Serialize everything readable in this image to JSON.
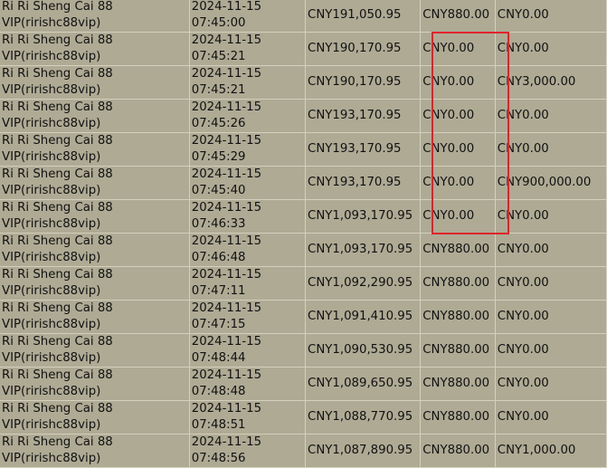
{
  "highlight_color": "#e0242b",
  "rows": [
    {
      "name": "Ri Ri Sheng Cai 88",
      "account": "VIP(ririshc88vip)",
      "date": "2024-11-15",
      "time": "07:45:00",
      "balance": "CNY191,050.95",
      "debit": "CNY880.00",
      "credit": "CNY0.00"
    },
    {
      "name": "Ri Ri Sheng Cai 88",
      "account": "VIP(ririshc88vip)",
      "date": "2024-11-15",
      "time": "07:45:21",
      "balance": "CNY190,170.95",
      "debit": "CNY0.00",
      "credit": "CNY0.00"
    },
    {
      "name": "Ri Ri Sheng Cai 88",
      "account": "VIP(ririshc88vip)",
      "date": "2024-11-15",
      "time": "07:45:21",
      "balance": "CNY190,170.95",
      "debit": "CNY0.00",
      "credit": "CNY3,000.00"
    },
    {
      "name": "Ri Ri Sheng Cai 88",
      "account": "VIP(ririshc88vip)",
      "date": "2024-11-15",
      "time": "07:45:26",
      "balance": "CNY193,170.95",
      "debit": "CNY0.00",
      "credit": "CNY0.00"
    },
    {
      "name": "Ri Ri Sheng Cai 88",
      "account": "VIP(ririshc88vip)",
      "date": "2024-11-15",
      "time": "07:45:29",
      "balance": "CNY193,170.95",
      "debit": "CNY0.00",
      "credit": "CNY0.00"
    },
    {
      "name": "Ri Ri Sheng Cai 88",
      "account": "VIP(ririshc88vip)",
      "date": "2024-11-15",
      "time": "07:45:40",
      "balance": "CNY193,170.95",
      "debit": "CNY0.00",
      "credit": "CNY900,000.00"
    },
    {
      "name": "Ri Ri Sheng Cai 88",
      "account": "VIP(ririshc88vip)",
      "date": "2024-11-15",
      "time": "07:46:33",
      "balance": "CNY1,093,170.95",
      "debit": "CNY0.00",
      "credit": "CNY0.00"
    },
    {
      "name": "Ri Ri Sheng Cai 88",
      "account": "VIP(ririshc88vip)",
      "date": "2024-11-15",
      "time": "07:46:48",
      "balance": "CNY1,093,170.95",
      "debit": "CNY880.00",
      "credit": "CNY0.00"
    },
    {
      "name": "Ri Ri Sheng Cai 88",
      "account": "VIP(ririshc88vip)",
      "date": "2024-11-15",
      "time": "07:47:11",
      "balance": "CNY1,092,290.95",
      "debit": "CNY880.00",
      "credit": "CNY0.00"
    },
    {
      "name": "Ri Ri Sheng Cai 88",
      "account": "VIP(ririshc88vip)",
      "date": "2024-11-15",
      "time": "07:47:15",
      "balance": "CNY1,091,410.95",
      "debit": "CNY880.00",
      "credit": "CNY0.00"
    },
    {
      "name": "Ri Ri Sheng Cai 88",
      "account": "VIP(ririshc88vip)",
      "date": "2024-11-15",
      "time": "07:48:44",
      "balance": "CNY1,090,530.95",
      "debit": "CNY880.00",
      "credit": "CNY0.00"
    },
    {
      "name": "Ri Ri Sheng Cai 88",
      "account": "VIP(ririshc88vip)",
      "date": "2024-11-15",
      "time": "07:48:48",
      "balance": "CNY1,089,650.95",
      "debit": "CNY880.00",
      "credit": "CNY0.00"
    },
    {
      "name": "Ri Ri Sheng Cai 88",
      "account": "VIP(ririshc88vip)",
      "date": "2024-11-15",
      "time": "07:48:51",
      "balance": "CNY1,088,770.95",
      "debit": "CNY880.00",
      "credit": "CNY0.00"
    },
    {
      "name": "Ri Ri Sheng Cai 88",
      "account": "VIP(ririshc88vip)",
      "date": "2024-11-15",
      "time": "07:48:56",
      "balance": "CNY1,087,890.95",
      "debit": "CNY880.00",
      "credit": "CNY1,000.00"
    }
  ]
}
